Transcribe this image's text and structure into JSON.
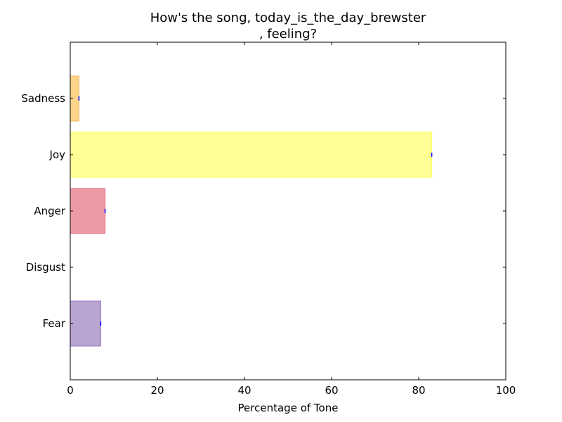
{
  "chart_data": {
    "type": "bar",
    "orientation": "horizontal",
    "title_lines": [
      "How's the song, today_is_the_day_brewster",
      ", feeling?"
    ],
    "xlabel": "Percentage of Tone",
    "ylabel": "",
    "xlim": [
      0,
      100
    ],
    "xticks": [
      "0",
      "20",
      "40",
      "60",
      "80",
      "100"
    ],
    "categories": [
      "Sadness",
      "Joy",
      "Anger",
      "Disgust",
      "Fear"
    ],
    "values": [
      2,
      83,
      8,
      0,
      7
    ],
    "colors": [
      "#ffd58a",
      "#ffff96",
      "#ee9aa6",
      "#ffffff",
      "#baa4d2"
    ],
    "edge_colors": [
      "#f0b860",
      "#ffff60",
      "#d86a80",
      "#ffffff",
      "#9878c0"
    ],
    "grid": false,
    "legend": "none"
  }
}
